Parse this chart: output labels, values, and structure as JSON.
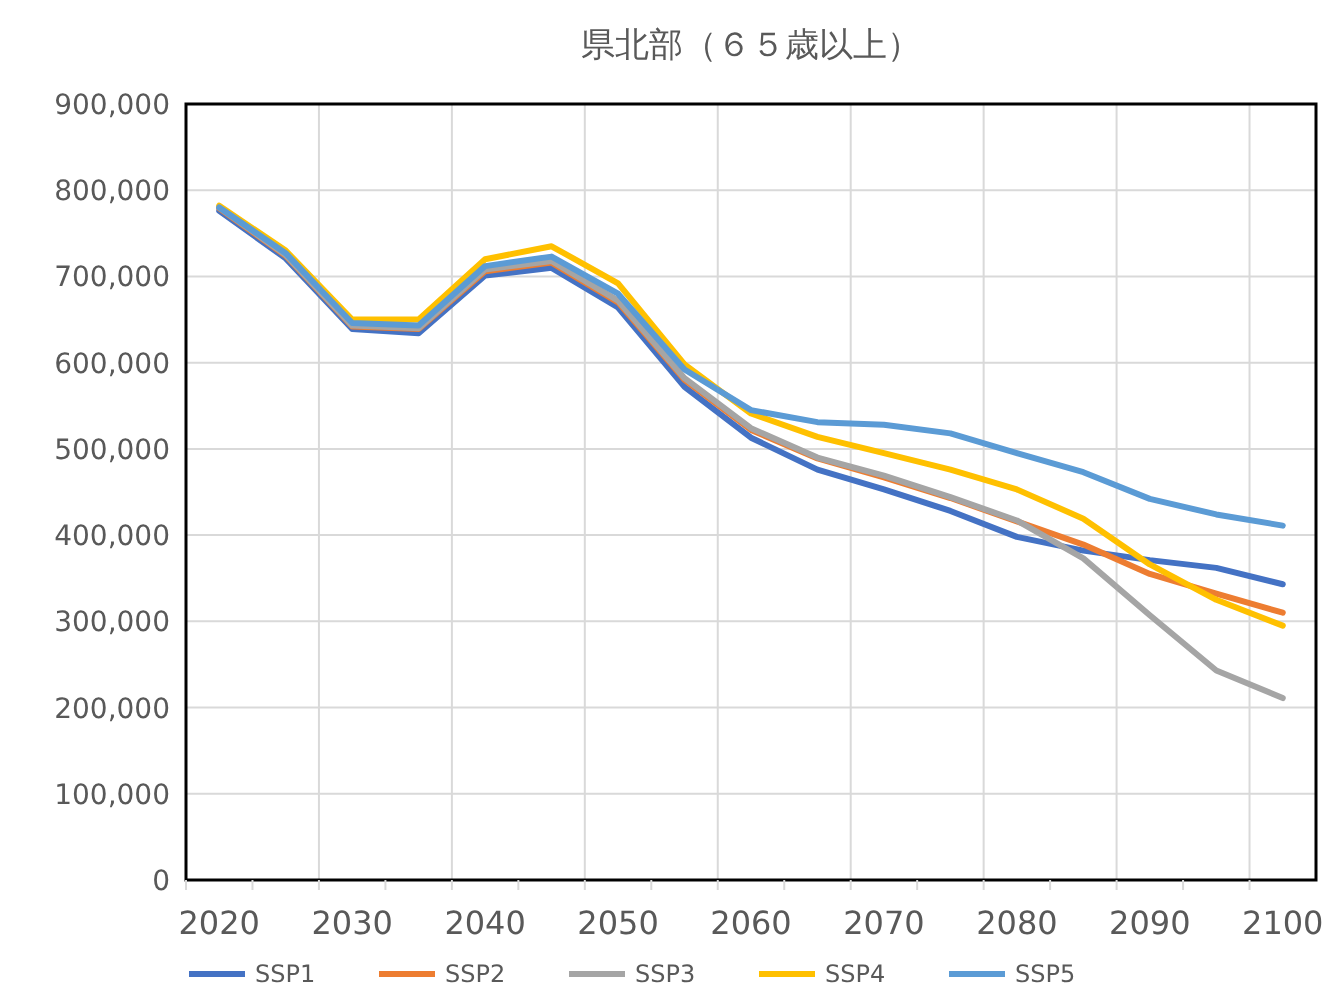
{
  "chart_data": {
    "type": "line",
    "title": "県北部（６５歳以上）",
    "categories": [
      "2020",
      null,
      "2030",
      null,
      "2040",
      null,
      "2050",
      null,
      "2060",
      null,
      "2070",
      null,
      "2080",
      null,
      "2090",
      null,
      "2100"
    ],
    "series": [
      {
        "name": "SSP1",
        "color": "#4472c4",
        "values": [
          776000,
          721000,
          639000,
          634000,
          701000,
          710000,
          664000,
          572000,
          513000,
          476000,
          453000,
          428000,
          398000,
          382000,
          371000,
          362000,
          343000
        ]
      },
      {
        "name": "SSP2",
        "color": "#ed7d31",
        "values": [
          779000,
          724000,
          642000,
          639000,
          706000,
          716000,
          670000,
          580000,
          522000,
          489000,
          467000,
          443000,
          416000,
          389000,
          355000,
          332000,
          310000
        ]
      },
      {
        "name": "SSP3",
        "color": "#a5a5a5",
        "values": [
          780000,
          725000,
          643000,
          640000,
          708000,
          718000,
          672000,
          582000,
          524000,
          490000,
          469000,
          444000,
          417000,
          373000,
          307000,
          243000,
          211000
        ]
      },
      {
        "name": "SSP4",
        "color": "#ffc000",
        "values": [
          782000,
          730000,
          650000,
          650000,
          720000,
          735000,
          692000,
          598000,
          541000,
          514000,
          495000,
          476000,
          453000,
          419000,
          366000,
          325000,
          295000
        ]
      },
      {
        "name": "SSP5",
        "color": "#5b9bd5",
        "values": [
          780000,
          727000,
          646000,
          643000,
          712000,
          723000,
          680000,
          592000,
          545000,
          531000,
          528000,
          518000,
          495000,
          473000,
          442000,
          424000,
          411000
        ]
      }
    ],
    "ylim": [
      0,
      900000
    ],
    "yticks": [
      {
        "value": 0,
        "label": "0"
      },
      {
        "value": 100000,
        "label": "100,000"
      },
      {
        "value": 200000,
        "label": "200,000"
      },
      {
        "value": 300000,
        "label": "300,000"
      },
      {
        "value": 400000,
        "label": "400,000"
      },
      {
        "value": 500000,
        "label": "500,000"
      },
      {
        "value": 600000,
        "label": "600,000"
      },
      {
        "value": 700000,
        "label": "700,000"
      },
      {
        "value": 800000,
        "label": "800,000"
      },
      {
        "value": 900000,
        "label": "900,000"
      }
    ],
    "grid": true,
    "legend": "bottom"
  }
}
